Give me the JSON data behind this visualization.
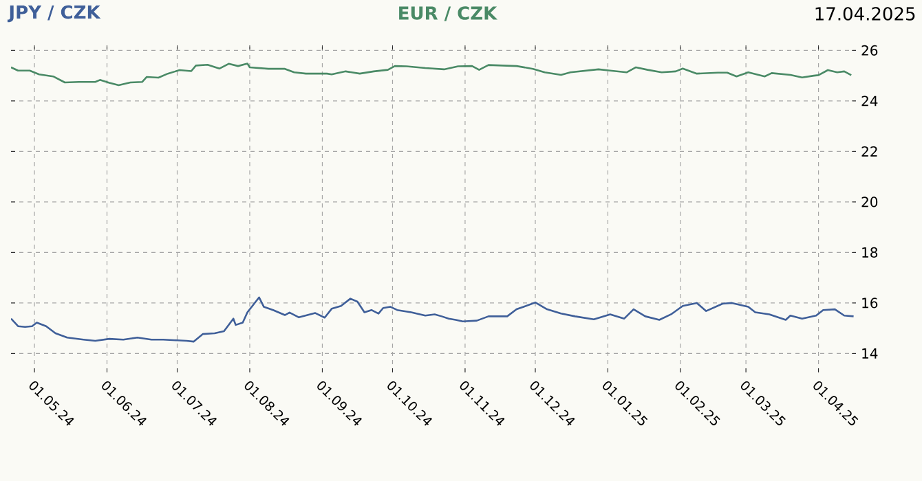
{
  "chart_data": {
    "type": "line",
    "annotations": [
      "17.04.2025"
    ],
    "xlim": [
      "2024-04-21",
      "2025-04-17"
    ],
    "xticks": [
      {
        "value": "2024-05-01",
        "label": "01.05.24"
      },
      {
        "value": "2024-06-01",
        "label": "01.06.24"
      },
      {
        "value": "2024-07-01",
        "label": "01.07.24"
      },
      {
        "value": "2024-08-01",
        "label": "01.08.24"
      },
      {
        "value": "2024-09-01",
        "label": "01.09.24"
      },
      {
        "value": "2024-10-01",
        "label": "01.10.24"
      },
      {
        "value": "2024-11-01",
        "label": "01.11.24"
      },
      {
        "value": "2024-12-01",
        "label": "01.12.24"
      },
      {
        "value": "2025-01-01",
        "label": "01.01.25"
      },
      {
        "value": "2025-02-01",
        "label": "01.02.25"
      },
      {
        "value": "2025-03-01",
        "label": "01.03.25"
      },
      {
        "value": "2025-04-01",
        "label": "01.04.25"
      }
    ],
    "ylim": [
      13.25,
      26.2
    ],
    "yticks": [
      14,
      16,
      18,
      20,
      22,
      24,
      26
    ],
    "grid": true,
    "marker": "none",
    "line_style": "solid",
    "series": [
      {
        "name": "JPY / CZK",
        "color": "#3f5f99",
        "x": [
          "2024-04-21",
          "2024-04-24",
          "2024-04-27",
          "2024-04-30",
          "2024-05-02",
          "2024-05-06",
          "2024-05-10",
          "2024-05-15",
          "2024-05-22",
          "2024-05-27",
          "2024-06-02",
          "2024-06-08",
          "2024-06-14",
          "2024-06-20",
          "2024-06-25",
          "2024-07-01",
          "2024-07-05",
          "2024-07-08",
          "2024-07-12",
          "2024-07-17",
          "2024-07-21",
          "2024-07-25",
          "2024-07-26",
          "2024-07-29",
          "2024-07-31",
          "2024-08-05",
          "2024-08-07",
          "2024-08-11",
          "2024-08-16",
          "2024-08-18",
          "2024-08-22",
          "2024-08-29",
          "2024-09-02",
          "2024-09-05",
          "2024-09-09",
          "2024-09-13",
          "2024-09-16",
          "2024-09-19",
          "2024-09-22",
          "2024-09-25",
          "2024-09-27",
          "2024-09-30",
          "2024-10-03",
          "2024-10-09",
          "2024-10-15",
          "2024-10-19",
          "2024-10-22",
          "2024-10-25",
          "2024-10-28",
          "2024-10-31",
          "2024-11-06",
          "2024-11-11",
          "2024-11-19",
          "2024-11-23",
          "2024-11-26",
          "2024-12-01",
          "2024-12-06",
          "2024-12-12",
          "2024-12-18",
          "2024-12-26",
          "2025-01-02",
          "2025-01-08",
          "2025-01-12",
          "2025-01-17",
          "2025-01-23",
          "2025-01-28",
          "2025-02-02",
          "2025-02-08",
          "2025-02-12",
          "2025-02-19",
          "2025-02-23",
          "2025-03-02",
          "2025-03-05",
          "2025-03-11",
          "2025-03-18",
          "2025-03-20",
          "2025-03-25",
          "2025-03-31",
          "2025-04-03",
          "2025-04-08",
          "2025-04-12",
          "2025-04-16"
        ],
        "values": [
          15.38,
          15.08,
          15.05,
          15.08,
          15.22,
          15.08,
          14.8,
          14.63,
          14.55,
          14.5,
          14.58,
          14.55,
          14.63,
          14.55,
          14.55,
          14.52,
          14.5,
          14.47,
          14.77,
          14.8,
          14.88,
          15.38,
          15.13,
          15.22,
          15.63,
          16.22,
          15.85,
          15.72,
          15.52,
          15.62,
          15.43,
          15.6,
          15.42,
          15.77,
          15.88,
          16.17,
          16.05,
          15.63,
          15.72,
          15.58,
          15.8,
          15.85,
          15.72,
          15.63,
          15.5,
          15.55,
          15.47,
          15.38,
          15.33,
          15.27,
          15.3,
          15.47,
          15.47,
          15.75,
          15.85,
          16.02,
          15.75,
          15.58,
          15.47,
          15.35,
          15.55,
          15.38,
          15.75,
          15.47,
          15.33,
          15.55,
          15.88,
          16.0,
          15.68,
          15.97,
          16.0,
          15.85,
          15.63,
          15.55,
          15.33,
          15.5,
          15.38,
          15.5,
          15.72,
          15.75,
          15.5,
          15.47
        ]
      },
      {
        "name": "EUR / CZK",
        "color": "#4a8a66",
        "x": [
          "2024-04-21",
          "2024-04-24",
          "2024-04-29",
          "2024-05-03",
          "2024-05-09",
          "2024-05-14",
          "2024-05-20",
          "2024-05-27",
          "2024-05-29",
          "2024-06-02",
          "2024-06-06",
          "2024-06-11",
          "2024-06-16",
          "2024-06-18",
          "2024-06-23",
          "2024-06-27",
          "2024-07-02",
          "2024-07-07",
          "2024-07-09",
          "2024-07-14",
          "2024-07-19",
          "2024-07-23",
          "2024-07-27",
          "2024-07-31",
          "2024-08-01",
          "2024-08-09",
          "2024-08-16",
          "2024-08-20",
          "2024-08-25",
          "2024-09-03",
          "2024-09-05",
          "2024-09-11",
          "2024-09-17",
          "2024-09-23",
          "2024-09-29",
          "2024-10-02",
          "2024-10-07",
          "2024-10-15",
          "2024-10-23",
          "2024-10-29",
          "2024-11-04",
          "2024-11-07",
          "2024-11-11",
          "2024-11-23",
          "2024-11-30",
          "2024-12-05",
          "2024-12-12",
          "2024-12-16",
          "2024-12-28",
          "2025-01-02",
          "2025-01-09",
          "2025-01-13",
          "2025-01-18",
          "2025-01-24",
          "2025-01-30",
          "2025-02-02",
          "2025-02-08",
          "2025-02-17",
          "2025-02-21",
          "2025-02-25",
          "2025-03-02",
          "2025-03-09",
          "2025-03-12",
          "2025-03-20",
          "2025-03-25",
          "2025-03-30",
          "2025-04-01",
          "2025-04-05",
          "2025-04-09",
          "2025-04-12",
          "2025-04-15"
        ],
        "values": [
          25.33,
          25.2,
          25.2,
          25.05,
          24.97,
          24.73,
          24.75,
          24.75,
          24.83,
          24.72,
          24.62,
          24.73,
          24.75,
          24.95,
          24.92,
          25.08,
          25.22,
          25.18,
          25.4,
          25.43,
          25.28,
          25.47,
          25.38,
          25.48,
          25.33,
          25.27,
          25.27,
          25.13,
          25.08,
          25.08,
          25.05,
          25.17,
          25.08,
          25.17,
          25.23,
          25.38,
          25.37,
          25.3,
          25.25,
          25.37,
          25.38,
          25.23,
          25.42,
          25.38,
          25.27,
          25.13,
          25.03,
          25.13,
          25.25,
          25.2,
          25.13,
          25.33,
          25.23,
          25.13,
          25.17,
          25.28,
          25.08,
          25.12,
          25.12,
          24.97,
          25.13,
          24.97,
          25.1,
          25.03,
          24.93,
          25.0,
          25.02,
          25.22,
          25.13,
          25.17,
          25.02
        ]
      }
    ]
  }
}
